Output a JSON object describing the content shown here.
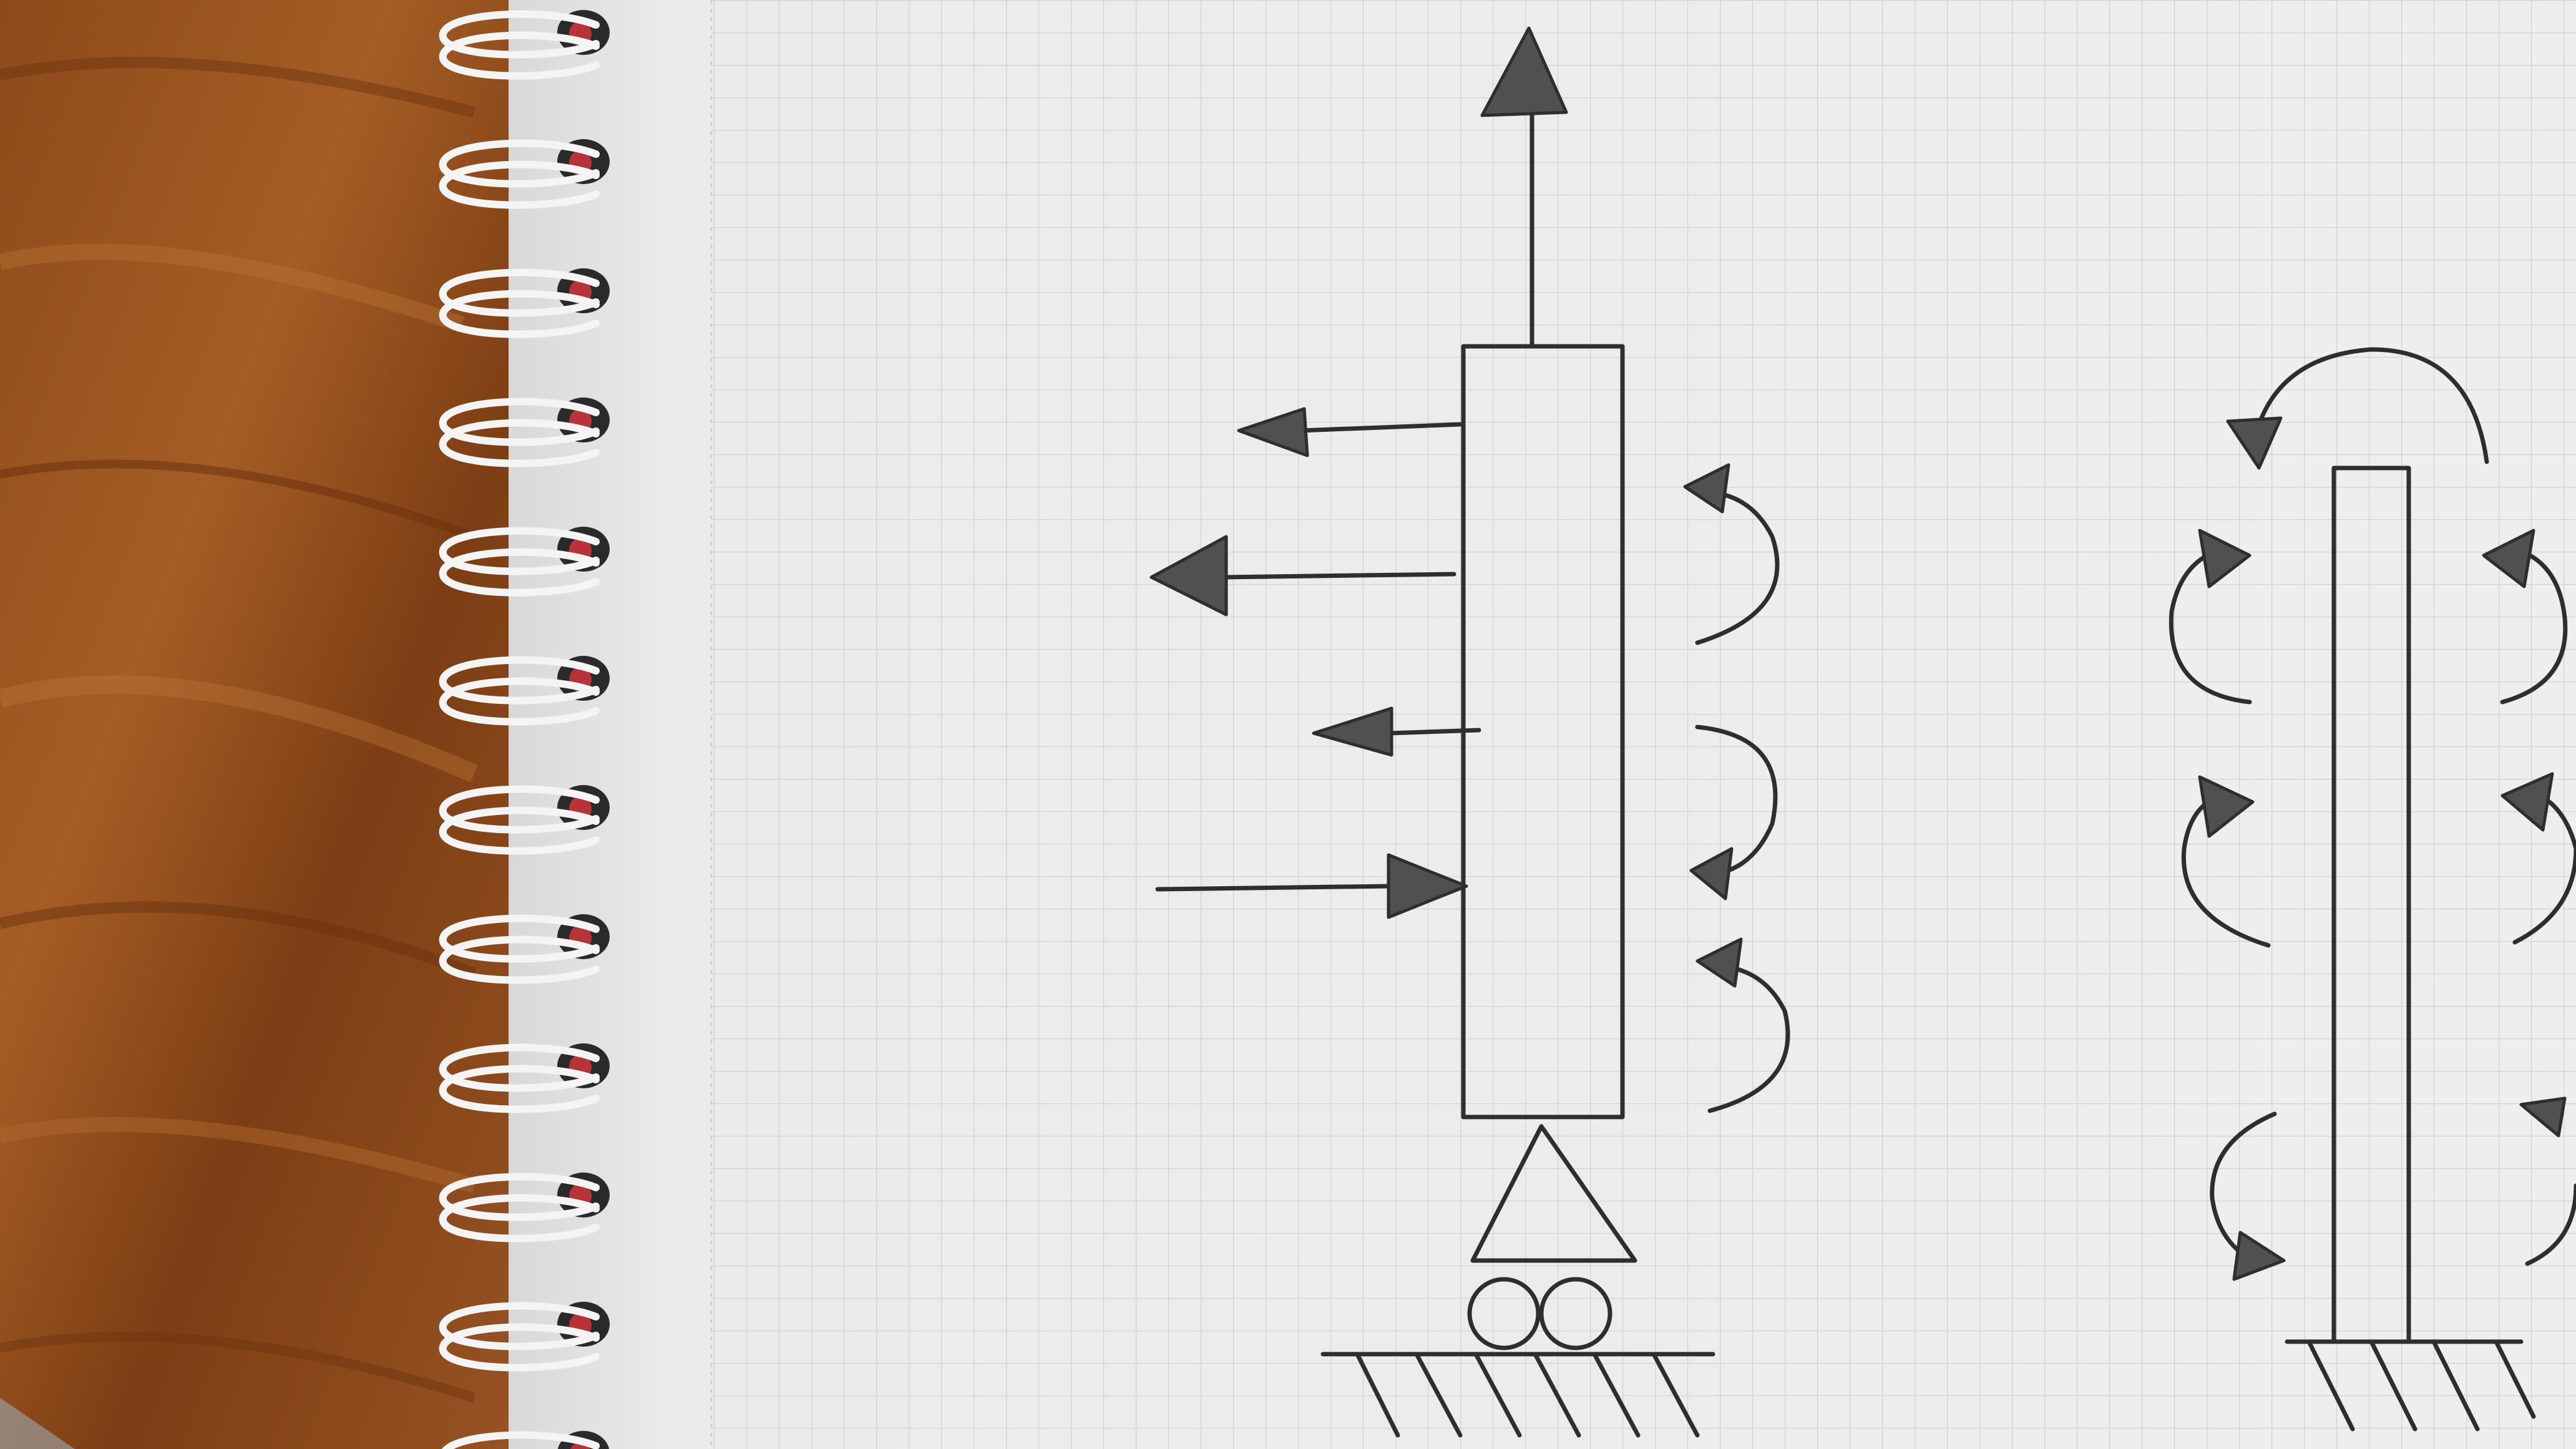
{
  "scene": {
    "description_kind": "photo",
    "elements": [
      "wooden-table",
      "spiral-notebook",
      "grid-paper",
      "cantilever-column-sketch",
      "fixed-column-sketch"
    ]
  },
  "colors": {
    "wood_dark": "#7a3e12",
    "wood_mid": "#9b5420",
    "wood_light": "#b86e32",
    "paper": "#ececec",
    "paper_shadow": "#d9d9d9",
    "grid_line": "#cfcfcf",
    "ink": "#2e2e2e",
    "ink_fill": "#505050",
    "spiral_wire": "#f4f4f4",
    "spiral_hole": "#2a2a2a",
    "spiral_red": "#b8323a"
  },
  "sketch_left": {
    "forces_left_count": 3,
    "forces_right_count": 1,
    "moments_count": 3,
    "support": "roller-on-hatched-ground"
  },
  "sketch_right": {
    "moments_left_count": 3,
    "moments_right_count": 3,
    "support": "fixed-hatched-ground"
  }
}
